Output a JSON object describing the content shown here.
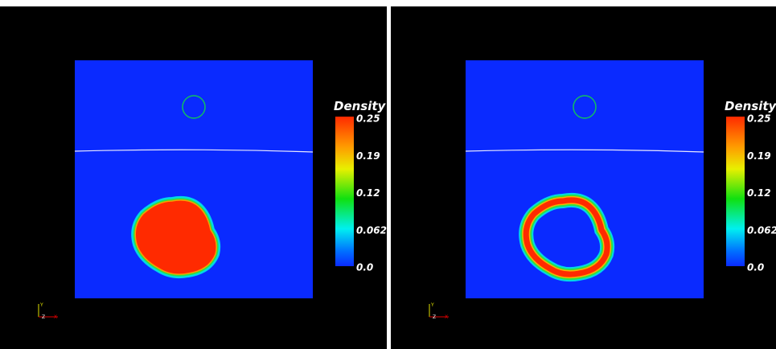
{
  "panels": [
    {
      "colorbar": {
        "title": "Density",
        "ticks": [
          "0.25",
          "0.19",
          "0.12",
          "0.062",
          "0.0"
        ]
      },
      "axes": {
        "y": "Y",
        "z": "Z",
        "x": "X"
      }
    },
    {
      "colorbar": {
        "title": "Density",
        "ticks": [
          "0.25",
          "0.19",
          "0.12",
          "0.062",
          "0.0"
        ]
      },
      "axes": {
        "y": "Y",
        "z": "Z",
        "x": "X"
      }
    }
  ]
}
